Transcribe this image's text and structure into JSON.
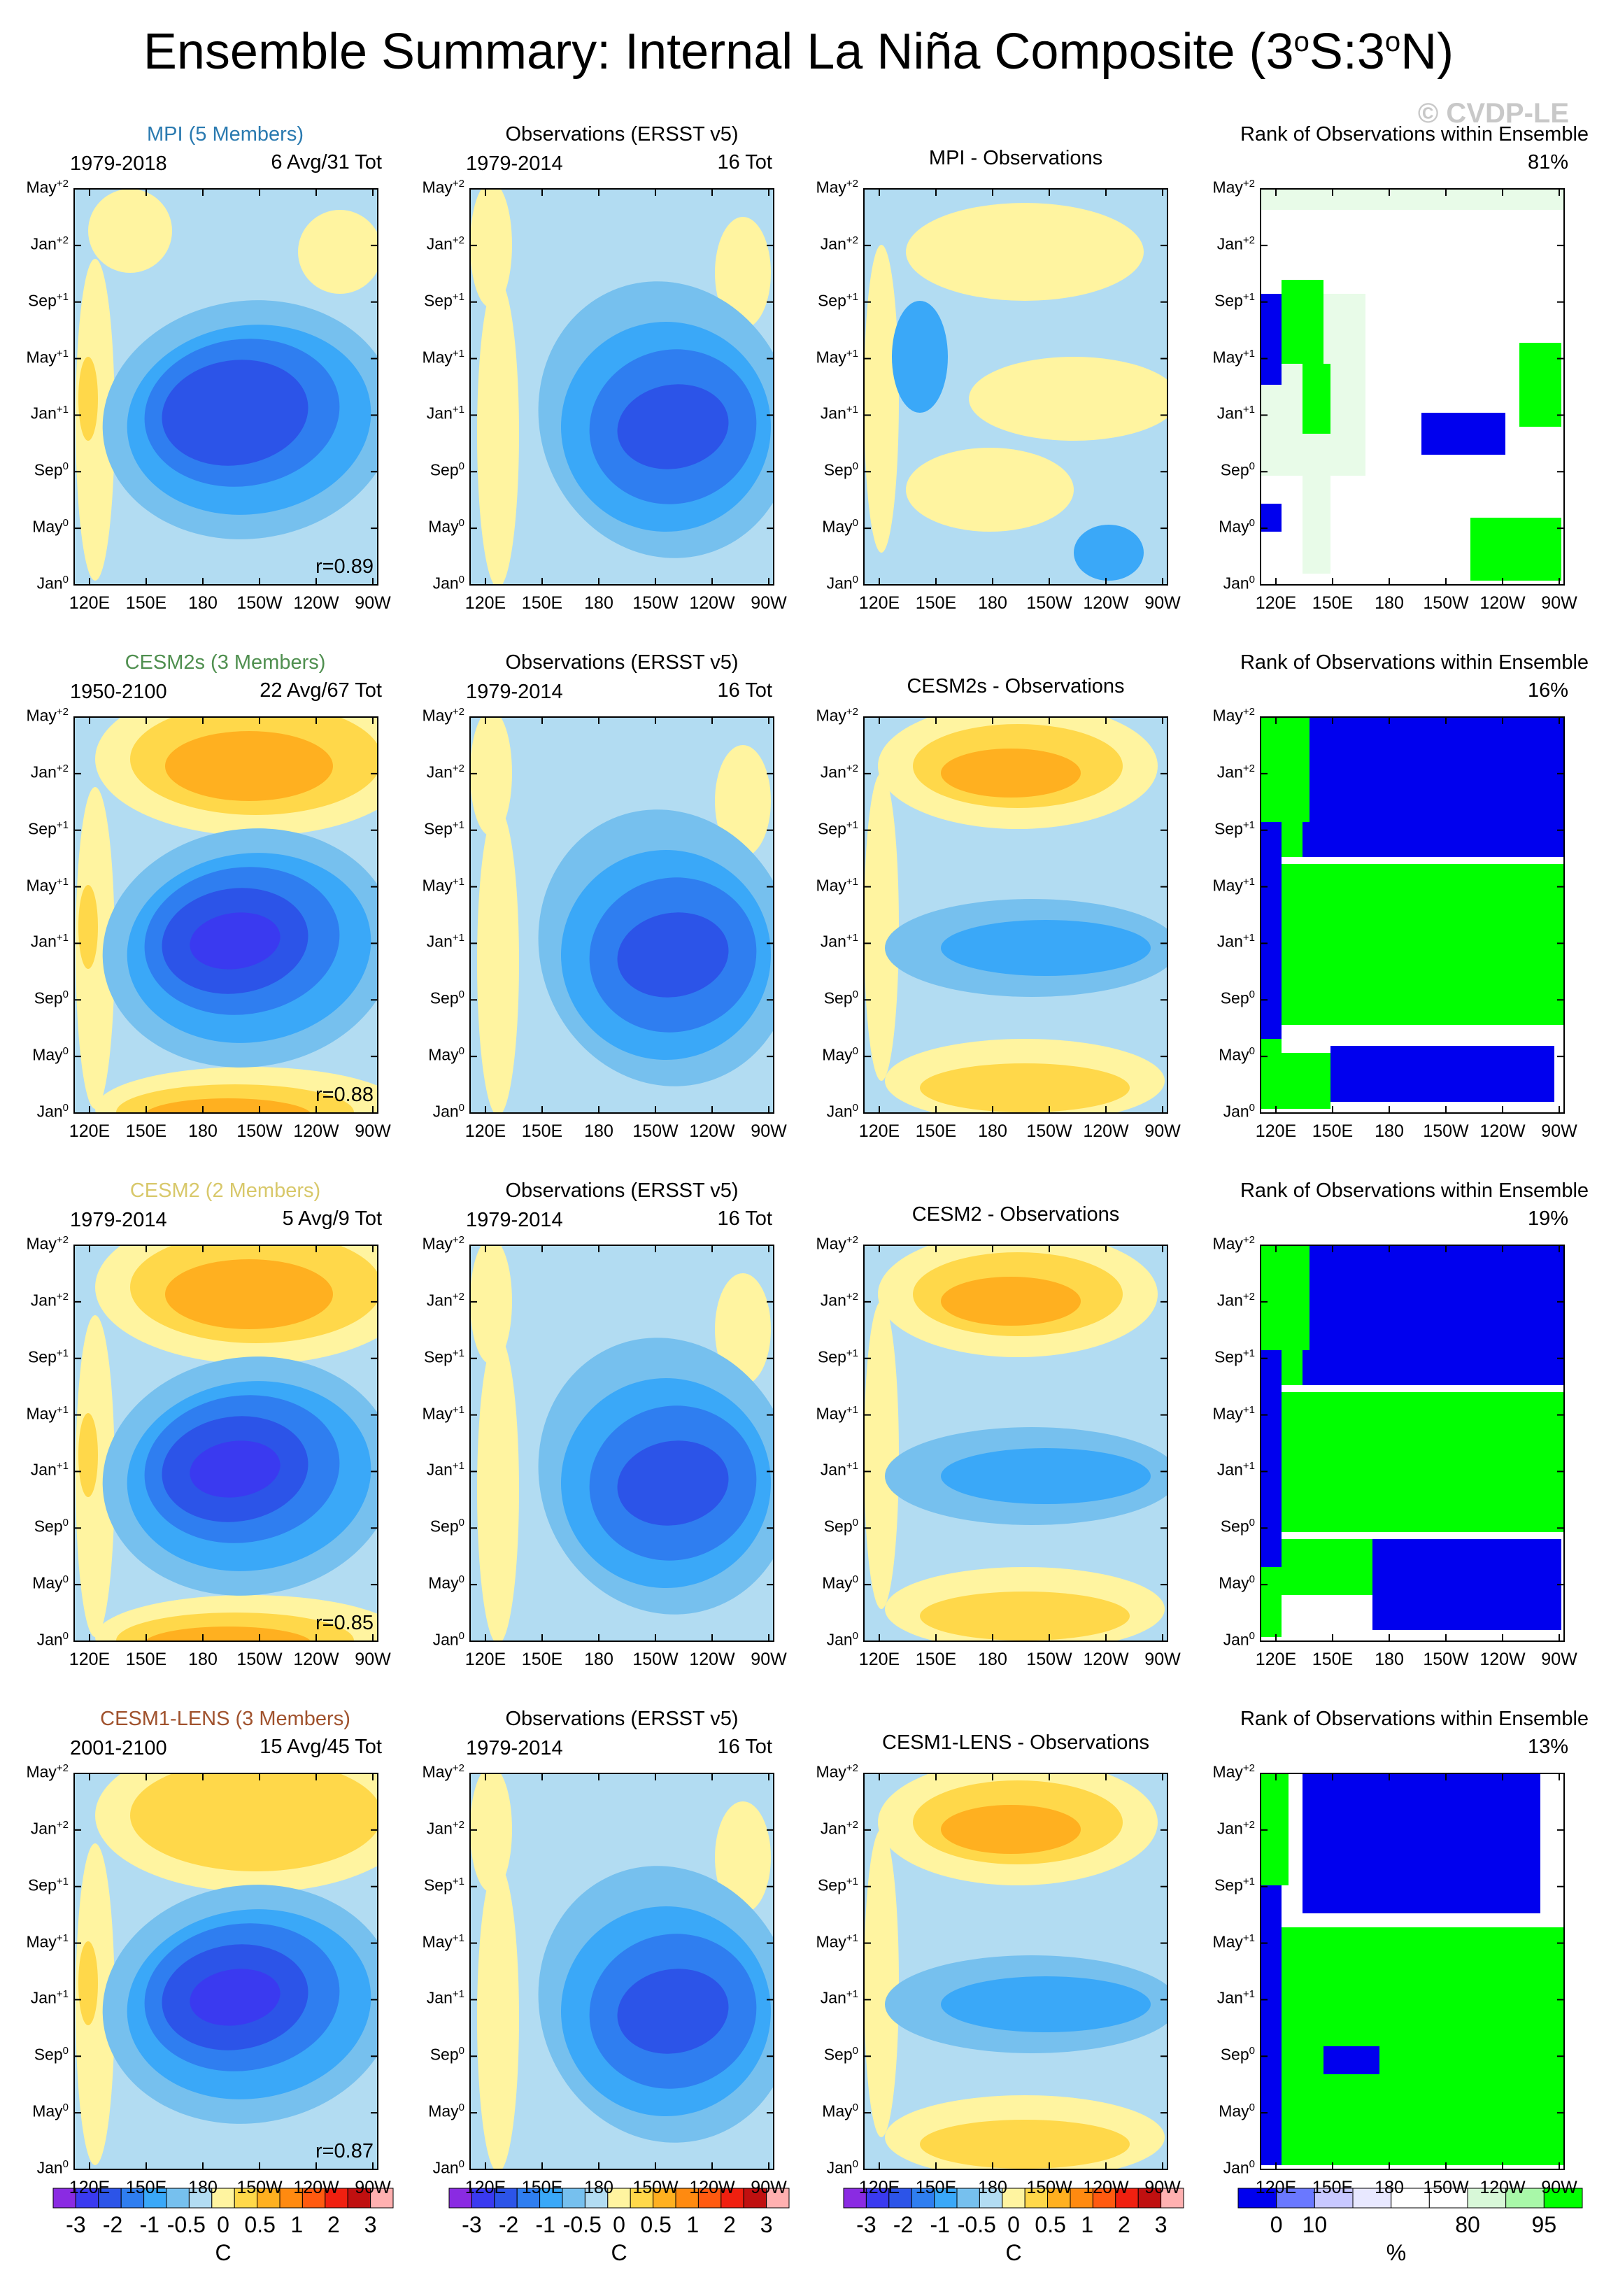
{
  "title": "Ensemble Summary: Internal La Niña Composite (3",
  "title_deg1": "o",
  "title_mid": "S:3",
  "title_deg2": "o",
  "title_end": "N)",
  "watermark": "© CVDP-LE",
  "colors": {
    "model_title_mpi": "#2a7ab0",
    "model_title_cesm2s": "#4f8f4f",
    "model_title_cesm2": "#d8c86a",
    "model_title_cesm1": "#a0522d",
    "rank_blue": "#0000ee",
    "rank_green": "#00ff00",
    "rank_lightgreen": "#e8fbe8"
  },
  "chart_data": {
    "type": "heatmap",
    "description": "Hovmoller composites of SST anomalies (longitude vs time), 4 ensembles x 4 panels",
    "xaxis": {
      "ticks": [
        "120E",
        "150E",
        "180",
        "150W",
        "120W",
        "90W"
      ]
    },
    "yaxis": {
      "ticks": [
        {
          "m": "Jan",
          "s": "0"
        },
        {
          "m": "May",
          "s": "0"
        },
        {
          "m": "Sep",
          "s": "0"
        },
        {
          "m": "Jan",
          "s": "+1"
        },
        {
          "m": "May",
          "s": "+1"
        },
        {
          "m": "Sep",
          "s": "+1"
        },
        {
          "m": "Jan",
          "s": "+2"
        },
        {
          "m": "May",
          "s": "+2"
        }
      ]
    },
    "rows": [
      {
        "model": "MPI (5 Members)",
        "model_color": "#2a7ab0",
        "model_period": "1979-2018",
        "model_count": "6 Avg/31 Tot",
        "r": "r=0.89",
        "obs_title": "Observations (ERSST v5)",
        "obs_period": "1979-2014",
        "obs_count": "16 Tot",
        "diff_title": "MPI - Observations",
        "rank_title": "Rank of Observations within Ensemble",
        "rank_pct": "81%"
      },
      {
        "model": "CESM2s (3 Members)",
        "model_color": "#4f8f4f",
        "model_period": "1950-2100",
        "model_count": "22 Avg/67 Tot",
        "r": "r=0.88",
        "obs_title": "Observations (ERSST v5)",
        "obs_period": "1979-2014",
        "obs_count": "16 Tot",
        "diff_title": "CESM2s - Observations",
        "rank_title": "Rank of Observations within Ensemble",
        "rank_pct": "16%"
      },
      {
        "model": "CESM2 (2 Members)",
        "model_color": "#d8c86a",
        "model_period": "1979-2014",
        "model_count": "5 Avg/9 Tot",
        "r": "r=0.85",
        "obs_title": "Observations (ERSST v5)",
        "obs_period": "1979-2014",
        "obs_count": "16 Tot",
        "diff_title": "CESM2 - Observations",
        "rank_title": "Rank of Observations within Ensemble",
        "rank_pct": "19%"
      },
      {
        "model": "CESM1-LENS (3 Members)",
        "model_color": "#a0522d",
        "model_period": "2001-2100",
        "model_count": "15 Avg/45 Tot",
        "r": "r=0.87",
        "obs_title": "Observations (ERSST v5)",
        "obs_period": "1979-2014",
        "obs_count": "16 Tot",
        "diff_title": "CESM1-LENS - Observations",
        "rank_title": "Rank of Observations within Ensemble",
        "rank_pct": "13%"
      }
    ],
    "sst_colorbar": {
      "unit": "C",
      "labels": [
        "-3",
        "-2",
        "-1",
        "-0.5",
        "0",
        "0.5",
        "1",
        "2",
        "3"
      ],
      "colors": [
        "#8a2be2",
        "#3a3af0",
        "#2c54e8",
        "#2f7ef0",
        "#3aa8f8",
        "#76c0ee",
        "#b2dcf2",
        "#fff4a0",
        "#ffd84a",
        "#ffb020",
        "#ff8a10",
        "#ff5a10",
        "#f02010",
        "#c01010",
        "#ffb0b0"
      ]
    },
    "rank_colorbar": {
      "unit": "%",
      "labels": [
        "0",
        "10",
        "80",
        "95"
      ],
      "colors": [
        "#0000ee",
        "#6a78ff",
        "#c8c8ff",
        "#e8e8ff",
        "#ffffff",
        "#ffffff",
        "#d8f8d8",
        "#a8f8a8",
        "#00ff00"
      ]
    }
  }
}
